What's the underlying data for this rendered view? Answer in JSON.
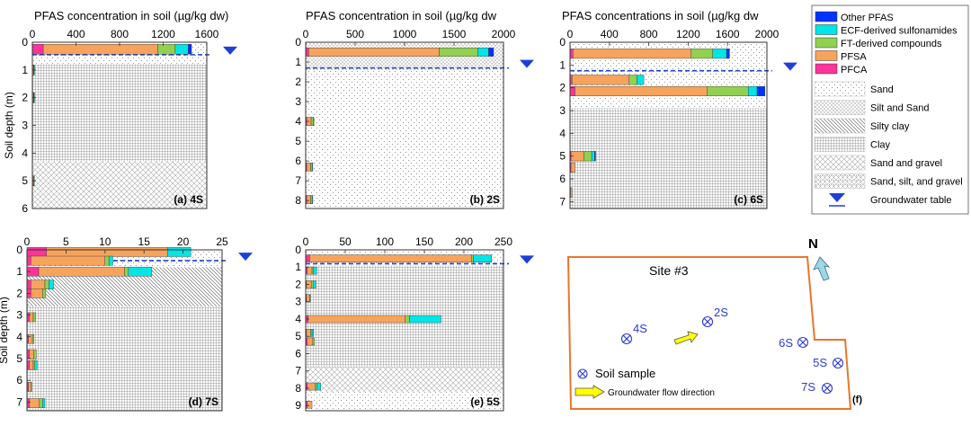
{
  "colors": {
    "PFCA": "#ff3399",
    "PFSA": "#f7a35c",
    "FT": "#92d050",
    "ECF": "#00e5e5",
    "Other": "#0033ff",
    "groundwater": "#1f3fd6",
    "site_border": "#e8762b",
    "sample_mark": "#2b3bd6",
    "flow_arrow": "#ffff00",
    "north_arrow": "#9fd6e6"
  },
  "legend": {
    "series": [
      {
        "key": "Other",
        "label": "Other PFAS"
      },
      {
        "key": "ECF",
        "label": "ECF-derived sulfonamides"
      },
      {
        "key": "FT",
        "label": "FT-derived compounds"
      },
      {
        "key": "PFSA",
        "label": "PFSA"
      },
      {
        "key": "PFCA",
        "label": "PFCA"
      }
    ],
    "soils": [
      {
        "pattern": "sand",
        "label": "Sand"
      },
      {
        "pattern": "siltsand",
        "label": "Silt and Sand"
      },
      {
        "pattern": "siltyclay",
        "label": "Silty clay"
      },
      {
        "pattern": "clay",
        "label": "Clay"
      },
      {
        "pattern": "sandgravel",
        "label": "Sand and gravel"
      },
      {
        "pattern": "sandsiltgravel",
        "label": "Sand, silt, and gravel"
      }
    ],
    "groundwater_label": "Groundwater table"
  },
  "chart_data": [
    {
      "type": "bar",
      "orientation": "horizontal",
      "stacked": true,
      "panel": "(a) 4S",
      "title": "PFAS concentration in soil (µg/kg dw)",
      "ylabel": "Soil depth (m)",
      "xlim": [
        0,
        1600
      ],
      "xticks": [
        0,
        400,
        800,
        1200,
        1600
      ],
      "ylim": [
        0,
        6
      ],
      "yticks": [
        0,
        1,
        2,
        3,
        4,
        5,
        6
      ],
      "groundwater_depth": 0.45,
      "soil_layers": [
        {
          "from": 0,
          "to": 0.8,
          "pattern": "sand"
        },
        {
          "from": 0.8,
          "to": 4.3,
          "pattern": "clay"
        },
        {
          "from": 4.3,
          "to": 6.0,
          "pattern": "sandgravel"
        }
      ],
      "samples": [
        {
          "depth": 0.25,
          "PFCA": 100,
          "PFSA": 1050,
          "FT": 160,
          "ECF": 120,
          "Other": 30
        },
        {
          "depth": 1.0,
          "PFCA": 3,
          "PFSA": 7,
          "FT": 4,
          "ECF": 2,
          "Other": 0
        },
        {
          "depth": 2.0,
          "PFCA": 3,
          "PFSA": 7,
          "FT": 4,
          "ECF": 2,
          "Other": 0
        },
        {
          "depth": 5.0,
          "PFCA": 3,
          "PFSA": 6,
          "FT": 3,
          "ECF": 2,
          "Other": 0
        }
      ]
    },
    {
      "type": "bar",
      "orientation": "horizontal",
      "stacked": true,
      "panel": "(b) 2S",
      "title": "PFAS concentration in soil (µg/kg dw",
      "ylabel": "",
      "xlim": [
        0,
        2000
      ],
      "xticks": [
        0,
        500,
        1000,
        1500,
        2000
      ],
      "ylim": [
        0,
        8.4
      ],
      "yticks": [
        0,
        1,
        2,
        3,
        4,
        5,
        6,
        7,
        8
      ],
      "groundwater_depth": 1.3,
      "soil_layers": [
        {
          "from": 0,
          "to": 1.4,
          "pattern": "siltsand"
        },
        {
          "from": 1.4,
          "to": 8.4,
          "pattern": "sand"
        }
      ],
      "samples": [
        {
          "depth": 0.5,
          "PFCA": 30,
          "PFSA": 1320,
          "FT": 390,
          "ECF": 110,
          "Other": 50
        },
        {
          "depth": 4.0,
          "PFCA": 10,
          "PFSA": 45,
          "FT": 20,
          "ECF": 8,
          "Other": 0
        },
        {
          "depth": 6.3,
          "PFCA": 10,
          "PFSA": 40,
          "FT": 15,
          "ECF": 5,
          "Other": 0
        },
        {
          "depth": 7.95,
          "PFCA": 10,
          "PFSA": 40,
          "FT": 15,
          "ECF": 5,
          "Other": 0
        }
      ]
    },
    {
      "type": "bar",
      "orientation": "horizontal",
      "stacked": true,
      "panel": "(c) 6S",
      "title": "PFAS concentrations in soil (µg/kg dw",
      "ylabel": "",
      "xlim": [
        0,
        2000
      ],
      "xticks": [
        0,
        400,
        800,
        1200,
        1600,
        2000
      ],
      "ylim": [
        0,
        7.3
      ],
      "yticks": [
        0,
        1,
        2,
        3,
        4,
        5,
        6,
        7
      ],
      "groundwater_depth": 1.25,
      "soil_layers": [
        {
          "from": 0,
          "to": 2.9,
          "pattern": "sand"
        },
        {
          "from": 2.9,
          "to": 7.3,
          "pattern": "clay"
        }
      ],
      "samples": [
        {
          "depth": 0.5,
          "PFCA": 30,
          "PFSA": 1200,
          "FT": 220,
          "ECF": 140,
          "Other": 30
        },
        {
          "depth": 1.65,
          "PFCA": 20,
          "PFSA": 580,
          "FT": 80,
          "ECF": 70,
          "Other": 0
        },
        {
          "depth": 2.15,
          "PFCA": 50,
          "PFSA": 1340,
          "FT": 420,
          "ECF": 90,
          "Other": 80
        },
        {
          "depth": 5.0,
          "PFCA": 10,
          "PFSA": 130,
          "FT": 80,
          "ECF": 30,
          "Other": 10
        },
        {
          "depth": 5.5,
          "PFCA": 10,
          "PFSA": 40,
          "FT": 0,
          "ECF": 0,
          "Other": 0
        },
        {
          "depth": 6.6,
          "PFCA": 5,
          "PFSA": 15,
          "FT": 0,
          "ECF": 0,
          "Other": 0
        }
      ]
    },
    {
      "type": "bar",
      "orientation": "horizontal",
      "stacked": true,
      "panel": "(d) 7S",
      "title": "",
      "ylabel": "Soil depth (m)",
      "xlim": [
        0,
        25
      ],
      "xticks": [
        0,
        5,
        10,
        15,
        20,
        25
      ],
      "ylim": [
        0,
        7.4
      ],
      "yticks": [
        0,
        1,
        2,
        3,
        4,
        5,
        6,
        7
      ],
      "groundwater_depth": 0.5,
      "soil_layers": [
        {
          "from": 0,
          "to": 0.8,
          "pattern": "sand"
        },
        {
          "from": 0.8,
          "to": 2.6,
          "pattern": "siltyclay"
        },
        {
          "from": 2.6,
          "to": 7.4,
          "pattern": "clay"
        }
      ],
      "samples": [
        {
          "depth": 0.1,
          "PFCA": 2.5,
          "PFSA": 15.5,
          "FT": 0,
          "ECF": 3,
          "Other": 0
        },
        {
          "depth": 0.5,
          "PFCA": 0.5,
          "PFSA": 9.5,
          "FT": 0.5,
          "ECF": 0.5,
          "Other": 0
        },
        {
          "depth": 1.0,
          "PFCA": 1.5,
          "PFSA": 11,
          "FT": 0.5,
          "ECF": 3,
          "Other": 0
        },
        {
          "depth": 1.6,
          "PFCA": 0.5,
          "PFSA": 1.8,
          "FT": 0.5,
          "ECF": 0.6,
          "Other": 0
        },
        {
          "depth": 2.0,
          "PFCA": 0.5,
          "PFSA": 1.5,
          "FT": 0.4,
          "ECF": 0,
          "Other": 0
        },
        {
          "depth": 3.1,
          "PFCA": 0.3,
          "PFSA": 0.5,
          "FT": 0.3,
          "ECF": 0,
          "Other": 0
        },
        {
          "depth": 4.1,
          "PFCA": 0.2,
          "PFSA": 0.5,
          "FT": 0.2,
          "ECF": 0,
          "Other": 0
        },
        {
          "depth": 4.8,
          "PFCA": 0.3,
          "PFSA": 0.6,
          "FT": 0.3,
          "ECF": 0,
          "Other": 0
        },
        {
          "depth": 5.3,
          "PFCA": 0.3,
          "PFSA": 0.5,
          "FT": 0.2,
          "ECF": 0.3,
          "Other": 0
        },
        {
          "depth": 6.3,
          "PFCA": 0.2,
          "PFSA": 0.3,
          "FT": 0.1,
          "ECF": 0,
          "Other": 0
        },
        {
          "depth": 7.05,
          "PFCA": 0.3,
          "PFSA": 1.3,
          "FT": 0.4,
          "ECF": 0.3,
          "Other": 0
        }
      ]
    },
    {
      "type": "bar",
      "orientation": "horizontal",
      "stacked": true,
      "panel": "(e) 5S",
      "title": "",
      "ylabel": "",
      "xlim": [
        0,
        250
      ],
      "xticks": [
        0,
        50,
        100,
        150,
        200,
        250
      ],
      "ylim": [
        0,
        9.3
      ],
      "yticks": [
        0,
        1,
        2,
        3,
        4,
        5,
        6,
        7,
        8,
        9
      ],
      "groundwater_depth": 0.8,
      "soil_layers": [
        {
          "from": 0,
          "to": 0.9,
          "pattern": "sand"
        },
        {
          "from": 0.9,
          "to": 6.8,
          "pattern": "clay"
        },
        {
          "from": 6.8,
          "to": 8.2,
          "pattern": "sandgravel"
        },
        {
          "from": 8.2,
          "to": 9.3,
          "pattern": "sand"
        }
      ],
      "samples": [
        {
          "depth": 0.5,
          "PFCA": 5,
          "PFSA": 205,
          "FT": 2,
          "ECF": 23,
          "Other": 0
        },
        {
          "depth": 1.2,
          "PFCA": 2,
          "PFSA": 6,
          "FT": 2,
          "ECF": 4,
          "Other": 0
        },
        {
          "depth": 2.0,
          "PFCA": 1,
          "PFSA": 6,
          "FT": 3,
          "ECF": 3,
          "Other": 0
        },
        {
          "depth": 2.8,
          "PFCA": 1,
          "PFSA": 4,
          "FT": 0,
          "ECF": 1,
          "Other": 0
        },
        {
          "depth": 4.0,
          "PFCA": 3,
          "PFSA": 123,
          "FT": 5,
          "ECF": 40,
          "Other": 0
        },
        {
          "depth": 4.8,
          "PFCA": 1,
          "PFSA": 5,
          "FT": 2,
          "ECF": 2,
          "Other": 0
        },
        {
          "depth": 5.3,
          "PFCA": 2,
          "PFSA": 7,
          "FT": 2,
          "ECF": 0,
          "Other": 0
        },
        {
          "depth": 7.9,
          "PFCA": 2,
          "PFSA": 10,
          "FT": 2,
          "ECF": 5,
          "Other": 0
        },
        {
          "depth": 8.95,
          "PFCA": 2,
          "PFSA": 6,
          "FT": 0,
          "ECF": 0,
          "Other": 0
        }
      ]
    }
  ],
  "site_map": {
    "title": "Site #3",
    "north": "N",
    "panel": "(f)",
    "samples": [
      "4S",
      "2S",
      "6S",
      "5S",
      "7S"
    ],
    "legend_sample": "Soil sample",
    "legend_flow": "Groundwater flow direction"
  }
}
